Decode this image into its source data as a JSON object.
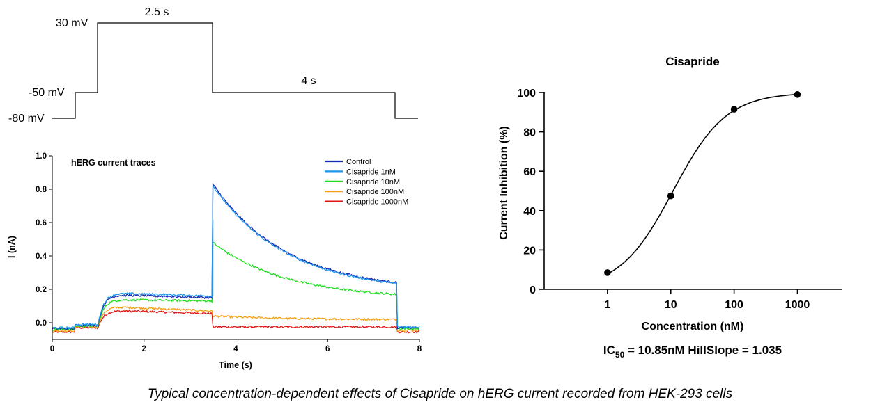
{
  "protocol": {
    "levels": [
      "30 mV",
      "-50 mV",
      "-80 mV"
    ],
    "durations": [
      "2.5 s",
      "4 s"
    ]
  },
  "chart_data": [
    {
      "type": "line",
      "title": "hERG current traces",
      "xlabel": "Time (s)",
      "ylabel": "I (nA)",
      "xlim": [
        0,
        8
      ],
      "ylim": [
        -0.1,
        1.0
      ],
      "xticks": [
        "0",
        "2",
        "4",
        "6",
        "8"
      ],
      "yticks": [
        "0.0",
        "0.2",
        "0.4",
        "0.6",
        "0.8",
        "1.0"
      ],
      "legend": "top-right",
      "series": [
        {
          "name": "Control",
          "color": "#1428b4",
          "pre": -0.035,
          "hold": -0.015,
          "step_peak": 0.17,
          "step_end": 0.15,
          "tail_peak": 0.83,
          "tail_end": 0.24,
          "post": -0.03
        },
        {
          "name": "Cisapride 1nM",
          "color": "#1e96eb",
          "pre": -0.03,
          "hold": -0.01,
          "step_peak": 0.18,
          "step_end": 0.16,
          "tail_peak": 0.82,
          "tail_end": 0.235,
          "post": -0.025
        },
        {
          "name": "Cisapride 10nM",
          "color": "#1edc1e",
          "pre": -0.04,
          "hold": -0.02,
          "step_peak": 0.14,
          "step_end": 0.13,
          "tail_peak": 0.48,
          "tail_end": 0.17,
          "post": -0.035
        },
        {
          "name": "Cisapride 100nM",
          "color": "#f5a014",
          "pre": -0.05,
          "hold": -0.025,
          "step_peak": 0.1,
          "step_end": 0.07,
          "tail_peak": 0.04,
          "tail_end": 0.02,
          "post": -0.045
        },
        {
          "name": "Cisapride 1000nM",
          "color": "#e11414",
          "pre": -0.055,
          "hold": -0.03,
          "step_peak": 0.075,
          "step_end": 0.055,
          "tail_peak": -0.025,
          "tail_end": -0.025,
          "post": -0.055
        }
      ]
    },
    {
      "type": "scatter",
      "title": "Cisapride",
      "xlabel": "Concentration (nM)",
      "ylabel": "Current Inhibition (%)",
      "xscale": "log",
      "xlim": [
        0.1,
        5000
      ],
      "ylim": [
        0,
        100
      ],
      "xticks": [
        "1",
        "10",
        "100",
        "1000"
      ],
      "yticks": [
        "0",
        "20",
        "40",
        "60",
        "80",
        "100"
      ],
      "x": [
        1,
        10,
        100,
        1000
      ],
      "y": [
        8.5,
        47.5,
        91.5,
        99
      ],
      "fit": {
        "ic50": 10.85,
        "hillslope": 1.035,
        "bottom": 0,
        "top": 100
      },
      "annotation": {
        "ic_main": "IC",
        "ic_sub": "50",
        "ic_rest": " = 10.85nM  HillSlope = 1.035"
      }
    }
  ],
  "caption": "Typical concentration-dependent effects of Cisapride on hERG current recorded from HEK-293 cells"
}
